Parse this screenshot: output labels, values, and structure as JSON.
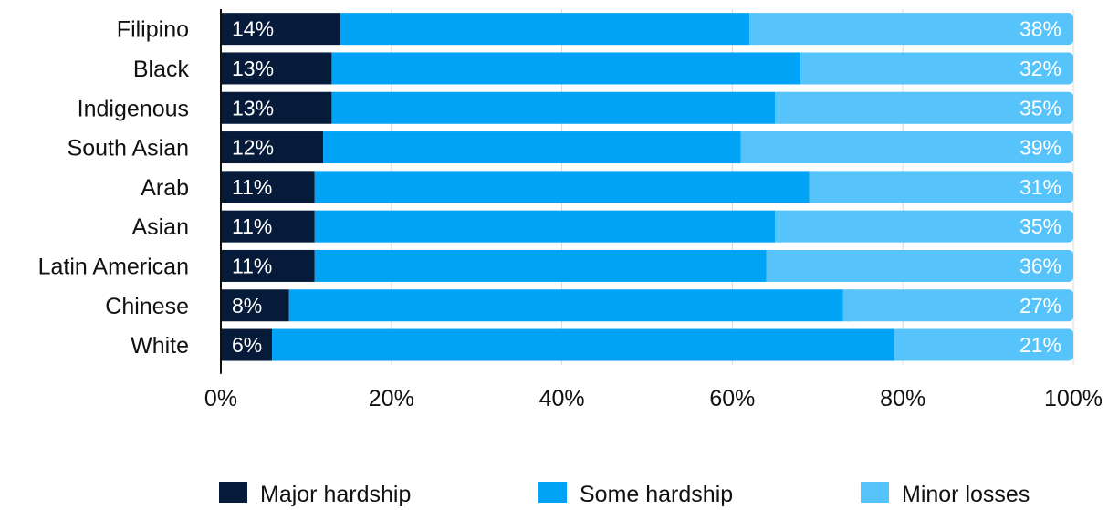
{
  "chart_data": {
    "type": "bar",
    "orientation": "horizontal",
    "stacked": true,
    "categories": [
      "Filipino",
      "Black",
      "Indigenous",
      "South Asian",
      "Arab",
      "Asian",
      "Latin American",
      "Chinese",
      "White"
    ],
    "series": [
      {
        "name": "Major hardship",
        "color": "#061a3a",
        "values": [
          14,
          13,
          13,
          12,
          11,
          11,
          11,
          8,
          6
        ],
        "labels": [
          "14%",
          "13%",
          "13%",
          "12%",
          "11%",
          "11%",
          "11%",
          "8%",
          "6%"
        ]
      },
      {
        "name": "Some hardship",
        "color": "#00a3f5",
        "values": [
          48,
          55,
          52,
          49,
          58,
          54,
          53,
          65,
          73
        ],
        "labels": []
      },
      {
        "name": "Minor losses",
        "color": "#56c3fb",
        "values": [
          38,
          32,
          35,
          39,
          31,
          35,
          36,
          27,
          21
        ],
        "labels": [
          "38%",
          "32%",
          "35%",
          "39%",
          "31%",
          "35%",
          "36%",
          "27%",
          "21%"
        ]
      }
    ],
    "xlim": [
      0,
      100
    ],
    "xticks": [
      "0%",
      "20%",
      "40%",
      "60%",
      "80%",
      "100%"
    ],
    "grid": true,
    "legend_position": "bottom"
  }
}
